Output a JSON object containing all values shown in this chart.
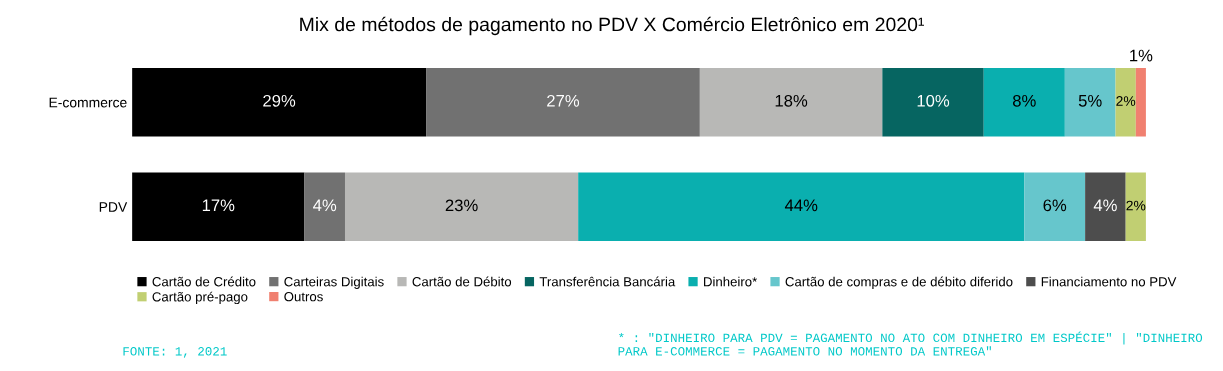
{
  "chart_data": {
    "type": "bar",
    "orientation": "horizontal",
    "stacked": true,
    "title": "Mix de métodos de pagamento no PDV X Comércio Eletrônico em 2020¹",
    "categories": [
      "E-commerce",
      "PDV"
    ],
    "series": [
      {
        "name": "Cartão de Crédito",
        "color": "#000000",
        "values": [
          29,
          17
        ],
        "value_labels": [
          "29%",
          "17%"
        ]
      },
      {
        "name": "Carteiras Digitais",
        "color": "#717171",
        "values": [
          27,
          4
        ],
        "value_labels": [
          "27%",
          "4%"
        ]
      },
      {
        "name": "Cartão de Débito",
        "color": "#b8b8b6",
        "values": [
          18,
          23
        ],
        "value_labels": [
          "18%",
          "23%"
        ]
      },
      {
        "name": "Transferência Bancária",
        "color": "#066561",
        "values": [
          10,
          null
        ],
        "value_labels": [
          "10%",
          null
        ]
      },
      {
        "name": "Dinheiro*",
        "color": "#0aafaf",
        "values": [
          8,
          44
        ],
        "value_labels": [
          "8%",
          "44%"
        ]
      },
      {
        "name": "Cartão de compras e de débito diferido",
        "color": "#66c6cc",
        "values": [
          5,
          6
        ],
        "value_labels": [
          "5%",
          "6%"
        ]
      },
      {
        "name": "Financiamento no PDV",
        "color": "#4d4d4d",
        "values": [
          null,
          4
        ],
        "value_labels": [
          null,
          "4%"
        ]
      },
      {
        "name": "Cartão pré-pago",
        "color": "#c1cf72",
        "values": [
          2,
          2
        ],
        "value_labels": [
          "2%",
          "2%"
        ]
      },
      {
        "name": "Outros",
        "color": "#f08070",
        "values": [
          1,
          null
        ],
        "value_labels": [
          "1%",
          null
        ]
      }
    ],
    "legend": "bottom",
    "grid": false,
    "annotations": [
      "FONTE: 1, 2021",
      "* : \"DINHEIRO PARA PDV = PAGAMENTO NO ATO COM DINHEIRO EM ESPÉCIE\" | \"DINHEIRO PARA E-COMMERCE = PAGAMENTO NO MOMENTO DA ENTREGA\""
    ]
  }
}
